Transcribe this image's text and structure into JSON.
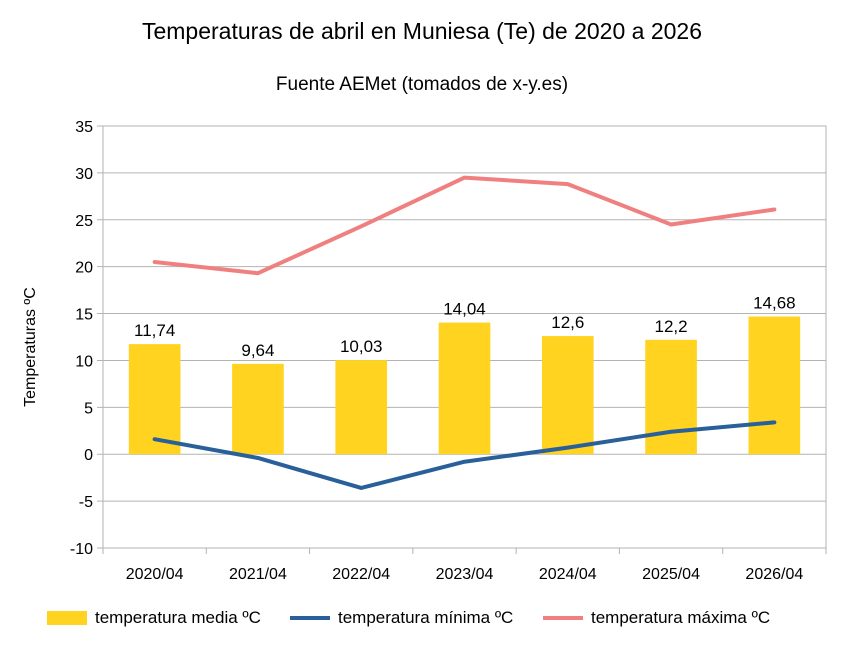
{
  "chart_data": {
    "type": "bar+line",
    "title": "Temperaturas de abril en Muniesa (Te) de 2020 a 2026",
    "subtitle": "Fuente AEMet (tomados de x-y.es)",
    "ylabel": "Temperaturas ºC",
    "xlabel": "",
    "ylim": [
      -10,
      35
    ],
    "yticks": [
      "35",
      "30",
      "25",
      "20",
      "15",
      "10",
      "5",
      "0",
      "-5",
      "-10"
    ],
    "grid": true,
    "legend_position": "bottom",
    "categories": [
      "2020/04",
      "2021/04",
      "2022/04",
      "2023/04",
      "2024/04",
      "2025/04",
      "2026/04"
    ],
    "series": [
      {
        "name": "temperatura media ºC",
        "type": "bar",
        "color": "#ffd320",
        "values": [
          11.74,
          9.64,
          10.03,
          14.04,
          12.6,
          12.2,
          14.68
        ],
        "labels": [
          "11,74",
          "9,64",
          "10,03",
          "14,04",
          "12,6",
          "12,2",
          "14,68"
        ]
      },
      {
        "name": "temperatura mínima ºC",
        "type": "line",
        "color": "#2a6099",
        "values": [
          1.6,
          -0.4,
          -3.6,
          -0.8,
          0.7,
          2.4,
          3.4
        ]
      },
      {
        "name": "temperatura máxima ºC",
        "type": "line",
        "color": "#f08080",
        "values": [
          20.5,
          19.3,
          24.3,
          29.5,
          28.8,
          24.5,
          26.1
        ]
      }
    ]
  }
}
